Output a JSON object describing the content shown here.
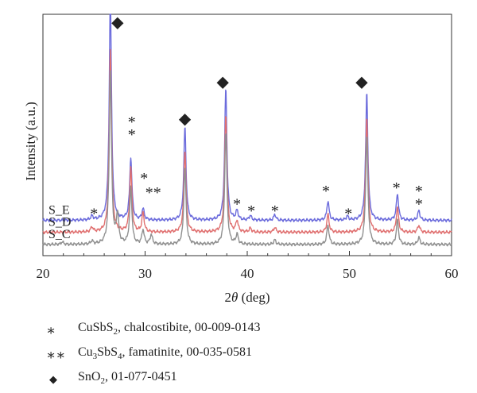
{
  "chart_data": {
    "type": "line",
    "xlabel_prefix": "2",
    "xlabel_theta": "θ",
    "xlabel_suffix": " (deg)",
    "ylabel": "Intensity (a.u.)",
    "xlim": [
      20,
      60
    ],
    "xticks": [
      "20",
      "30",
      "40",
      "50",
      "60"
    ],
    "grid": false,
    "series": [
      {
        "name": "S_E",
        "color": "#6b6bdc",
        "baseline": 0.75,
        "peaks": [
          [
            24.8,
            0.12
          ],
          [
            26.6,
            7.05
          ],
          [
            28.6,
            1.95
          ],
          [
            29.8,
            0.35
          ],
          [
            33.9,
            2.9
          ],
          [
            37.9,
            4.1
          ],
          [
            39.0,
            0.28
          ],
          [
            40.3,
            0.14
          ],
          [
            42.7,
            0.18
          ],
          [
            47.9,
            0.6
          ],
          [
            49.8,
            0.12
          ],
          [
            51.7,
            3.97
          ],
          [
            54.7,
            0.82
          ],
          [
            56.8,
            0.3
          ]
        ]
      },
      {
        "name": "S_D",
        "color": "#e07070",
        "baseline": 0.38,
        "peaks": [
          [
            24.8,
            0.15
          ],
          [
            26.6,
            5.7
          ],
          [
            28.6,
            2.0
          ],
          [
            29.8,
            0.6
          ],
          [
            33.9,
            2.55
          ],
          [
            37.9,
            3.7
          ],
          [
            39.0,
            0.35
          ],
          [
            40.3,
            0.12
          ],
          [
            42.7,
            0.15
          ],
          [
            47.9,
            0.55
          ],
          [
            51.7,
            3.6
          ],
          [
            54.7,
            0.78
          ],
          [
            56.8,
            0.22
          ]
        ]
      },
      {
        "name": "S_C",
        "color": "#909090",
        "baseline": 0.0,
        "peaks": [
          [
            21.9,
            0.08
          ],
          [
            24.8,
            0.1
          ],
          [
            26.6,
            5.4
          ],
          [
            27.3,
            0.9
          ],
          [
            28.6,
            1.75
          ],
          [
            29.8,
            0.45
          ],
          [
            30.6,
            0.3
          ],
          [
            33.9,
            2.4
          ],
          [
            37.9,
            3.5
          ],
          [
            39.0,
            0.3
          ],
          [
            42.7,
            0.14
          ],
          [
            47.9,
            0.6
          ],
          [
            51.7,
            3.4
          ],
          [
            54.7,
            0.75
          ],
          [
            56.8,
            0.22
          ]
        ]
      }
    ],
    "annotations": [
      {
        "text": "◆",
        "x": 27.3,
        "level": 6.95
      },
      {
        "text": "*",
        "x": 28.7,
        "level": 4.05
      },
      {
        "text": "*",
        "x": 28.7,
        "level": 3.65
      },
      {
        "text": "*",
        "x": 29.9,
        "level": 2.3
      },
      {
        "text": "**",
        "x": 30.8,
        "level": 1.85
      },
      {
        "text": "◆",
        "x": 33.9,
        "level": 3.95
      },
      {
        "text": "◆",
        "x": 37.6,
        "level": 5.1
      },
      {
        "text": "*",
        "x": 25.0,
        "level": 1.2
      },
      {
        "text": "*",
        "x": 39.0,
        "level": 1.5
      },
      {
        "text": "*",
        "x": 40.4,
        "level": 1.28
      },
      {
        "text": "*",
        "x": 42.7,
        "level": 1.28
      },
      {
        "text": "*",
        "x": 47.7,
        "level": 1.9
      },
      {
        "text": "*",
        "x": 49.9,
        "level": 1.2
      },
      {
        "text": "◆",
        "x": 51.2,
        "level": 5.1
      },
      {
        "text": "*",
        "x": 54.6,
        "level": 2.0
      },
      {
        "text": "*",
        "x": 56.8,
        "level": 1.9
      },
      {
        "text": "*",
        "x": 56.8,
        "level": 1.5
      }
    ]
  },
  "legend": {
    "items": [
      {
        "symbol": "∗",
        "formula_main": "CuSbS",
        "formula_sub": "2",
        "formula_rest": "",
        "rest": ", chalcostibite, 00-009-0143"
      },
      {
        "symbol": "∗∗",
        "formula_main": "Cu",
        "formula_sub": "3",
        "formula_rest": "SbS",
        "formula_sub2": "4",
        "rest": ", famatinite, 00-035-0581"
      },
      {
        "symbol": "◆",
        "formula_main": "SnO",
        "formula_sub": "2",
        "formula_rest": "",
        "rest": ", 01-077-0451"
      }
    ]
  }
}
